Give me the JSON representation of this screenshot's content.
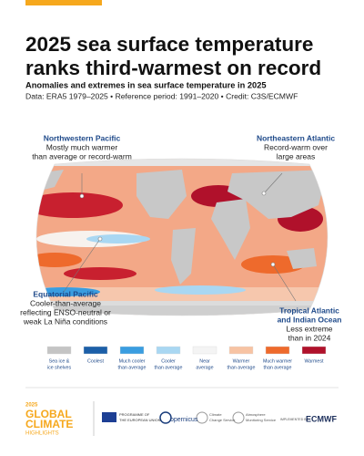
{
  "header": {
    "title": [
      "2025 sea surface temperature",
      "ranks third-warmest on record"
    ],
    "subtitle": "Anomalies and extremes in sea surface temperature in 2025",
    "source": "Data: ERA5 1979–2025 • Reference period: 1991–2020 • Credit: C3S/ECMWF"
  },
  "annotations": [
    {
      "title": [
        "Northwestern Pacific"
      ],
      "text": [
        "Mostly much warmer",
        "than average or record-warm"
      ]
    },
    {
      "title": [
        "Northeastern Atlantic"
      ],
      "text": [
        "Record-warm over",
        "large areas"
      ]
    },
    {
      "title": [
        "Equatorial Pacific"
      ],
      "text": [
        "Cooler-than-average",
        "reflecting ENSO-neutral or",
        "weak La Niña conditions"
      ]
    },
    {
      "title": [
        "Tropical Atlantic",
        "and Indian Ocean"
      ],
      "text": [
        "Less extreme",
        "than in 2024"
      ]
    }
  ],
  "legend": [
    {
      "color": "#c4c4c4",
      "label": [
        "Sea ice &",
        "ice shelves"
      ]
    },
    {
      "color": "#1c5fa8",
      "label": [
        "Coolest"
      ]
    },
    {
      "color": "#3a9de0",
      "label": [
        "Much cooler",
        "than average"
      ]
    },
    {
      "color": "#a9d7f2",
      "label": [
        "Cooler",
        "than average"
      ]
    },
    {
      "color": "#f4f4f4",
      "label": [
        "Near",
        "average"
      ]
    },
    {
      "color": "#f7c3a3",
      "label": [
        "Warmer",
        "than average"
      ]
    },
    {
      "color": "#ee6a2c",
      "label": [
        "Much warmer",
        "than average"
      ]
    },
    {
      "color": "#b0112b",
      "label": [
        "Warmest"
      ]
    }
  ],
  "footer": {
    "year": "2025",
    "brand": [
      "GLOBAL",
      "CLIMATE"
    ],
    "highlights": "HIGHLIGHTS",
    "eu": [
      "PROGRAMME OF",
      "THE EUROPEAN UNION"
    ],
    "copernicus": "opernicus",
    "c3s": [
      "Climate",
      "Change Service"
    ],
    "cams": [
      "Atmosphere",
      "Monitoring Service"
    ],
    "implemented": "IMPLEMENTED BY",
    "ecmwf": "ECMWF"
  }
}
